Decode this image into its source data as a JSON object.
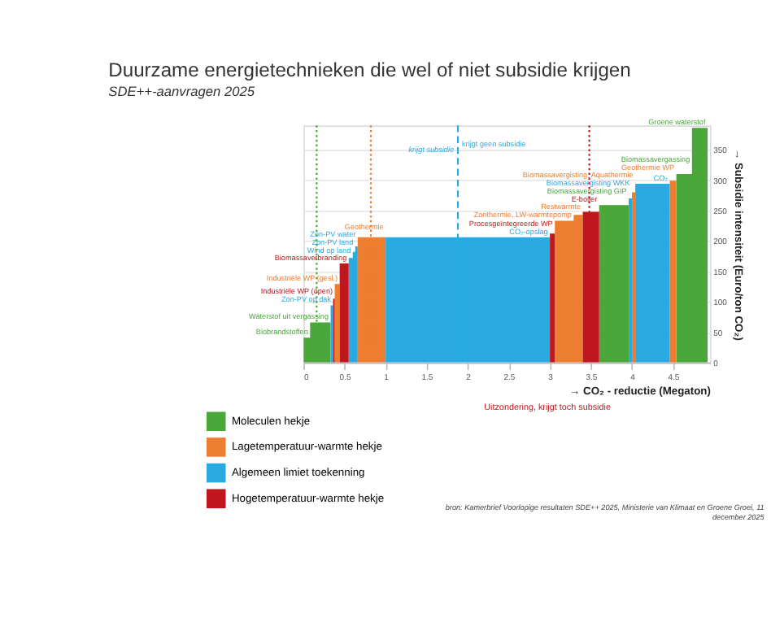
{
  "chart_data": {
    "type": "area",
    "title": "Duurzame energietechnieken die wel of niet subsidie krijgen",
    "subtitle": "SDE++-aanvragen 2025",
    "xlabel": "→ CO₂ - reductie (Megaton)",
    "ylabel": "→ Subsidie intensiteit (Euro/ton CO₂)",
    "xlim": [
      0,
      4.95
    ],
    "xticks": [
      0,
      0.5,
      1,
      1.5,
      2,
      2.5,
      3,
      3.5,
      4,
      4.5
    ],
    "ylim": [
      0,
      390
    ],
    "yticks": [
      0,
      50,
      100,
      150,
      200,
      250,
      300,
      350
    ],
    "grid": "y",
    "legend": "bottom left",
    "series": [
      {
        "name": "Moleculen hekje",
        "color": "#4aa83a",
        "x": [
          0,
          0.08,
          0.08,
          0.33,
          0.33,
          3.6,
          3.6,
          3.96,
          3.96,
          4.54,
          4.54,
          4.73,
          4.73,
          4.92,
          4.92
        ],
        "values": [
          41,
          41,
          66,
          66,
          0,
          0,
          259,
          259,
          0,
          0,
          310,
          310,
          386,
          386,
          0
        ]
      },
      {
        "name": "Lagetemperatuur-warmte hekje",
        "color": "#ed7d31",
        "x": [
          0.38,
          0.38,
          0.44,
          0.44,
          0.66,
          0.66,
          1.0,
          1.0,
          3.06,
          3.06,
          3.29,
          3.29,
          3.4,
          3.4,
          4.0,
          4.0,
          4.04,
          4.04,
          4.46,
          4.46,
          4.54,
          4.54
        ],
        "values": [
          0,
          129,
          129,
          0,
          0,
          206,
          206,
          0,
          0,
          233,
          233,
          243,
          243,
          0,
          0,
          280,
          280,
          0,
          0,
          299,
          299,
          0
        ]
      },
      {
        "name": "Algemeen limiet toekenning",
        "color": "#29abe2",
        "x": [
          0.33,
          0.33,
          0.36,
          0.36,
          0.55,
          0.55,
          0.6,
          0.6,
          0.63,
          0.63,
          0.66,
          0.66,
          1.0,
          1.0,
          3.0,
          3.0,
          3.96,
          3.96,
          4.0,
          4.0,
          4.04,
          4.04,
          4.46,
          4.46
        ],
        "values": [
          0,
          94,
          94,
          0,
          0,
          172,
          172,
          182,
          182,
          191,
          191,
          0,
          0,
          206,
          206,
          0,
          0,
          270,
          270,
          0,
          0,
          294,
          294,
          0
        ]
      },
      {
        "name": "Hogetemperatuur-warmte hekje",
        "color": "#c0171e",
        "x": [
          0.36,
          0.36,
          0.38,
          0.38,
          0.44,
          0.44,
          0.55,
          0.55,
          3.0,
          3.0,
          3.06,
          3.06,
          3.4,
          3.4,
          3.6,
          3.6
        ],
        "values": [
          0,
          105,
          105,
          0,
          0,
          163,
          163,
          0,
          0,
          212,
          212,
          0,
          0,
          248,
          248,
          0
        ]
      }
    ],
    "ref_lines": [
      {
        "axis": "x",
        "value": 0.16,
        "color": "#4aa83a",
        "line_style": "dotted"
      },
      {
        "axis": "x",
        "value": 0.82,
        "color": "#ed7d31",
        "line_style": "dotted"
      },
      {
        "axis": "x",
        "value": 1.88,
        "label": "krijgt subsidie",
        "color": "#29abe2",
        "line_style": "dashed"
      },
      {
        "axis": "x",
        "value": 3.48,
        "color": "#c0171e",
        "line_style": "dotted"
      }
    ],
    "annotations": [
      {
        "text": "Biobrandstoffen",
        "x": 0.08,
        "y": 41
      },
      {
        "text": "Waterstof uit vergassing",
        "x": 0.33,
        "y": 66
      },
      {
        "text": "Zon-PV op dak",
        "x": 0.36,
        "y": 94
      },
      {
        "text": "Industriële WP (open)",
        "x": 0.38,
        "y": 105
      },
      {
        "text": "Industriële WP (gesl.)",
        "x": 0.44,
        "y": 129
      },
      {
        "text": "Biomassaverbranding",
        "x": 0.55,
        "y": 163
      },
      {
        "text": "Wind op land",
        "x": 0.6,
        "y": 172
      },
      {
        "text": "Zon-PV land",
        "x": 0.63,
        "y": 182
      },
      {
        "text": "Zon-PV water",
        "x": 0.66,
        "y": 191
      },
      {
        "text": "Geothermie",
        "x": 1.0,
        "y": 206
      },
      {
        "text": "CO₂-opslag",
        "x": 3.0,
        "y": 206
      },
      {
        "text": "Procesgeïntegreerde WP",
        "x": 3.06,
        "y": 212
      },
      {
        "text": "Zonthermie, LW-warmtepomp",
        "x": 3.29,
        "y": 233
      },
      {
        "text": "Restwarmte",
        "x": 3.4,
        "y": 243
      },
      {
        "text": "E-boiler",
        "x": 3.6,
        "y": 248
      },
      {
        "text": "Biomassavergisting GIP",
        "x": 3.96,
        "y": 259
      },
      {
        "text": "Biomassavergisting WKK",
        "x": 4.0,
        "y": 270
      },
      {
        "text": "Biomassavergisting, Aquathermie",
        "x": 4.04,
        "y": 280
      },
      {
        "text": "CO₂",
        "x": 4.46,
        "y": 294
      },
      {
        "text": "Geothermie WP",
        "x": 4.54,
        "y": 299
      },
      {
        "text": "Biomassavergassing",
        "x": 4.73,
        "y": 310
      },
      {
        "text": "Groene waterstof",
        "x": 4.92,
        "y": 386
      },
      {
        "text": "krijgt geen subsidie",
        "x": 1.88,
        "y": 350
      },
      "Uitzondering, krijgt toch subsidie",
      "bron: Kamerbrief Voorlopige resultaten SDE++ 2025, Ministerie van Klimaat en Groene Groei, 11 december 2025"
    ]
  }
}
